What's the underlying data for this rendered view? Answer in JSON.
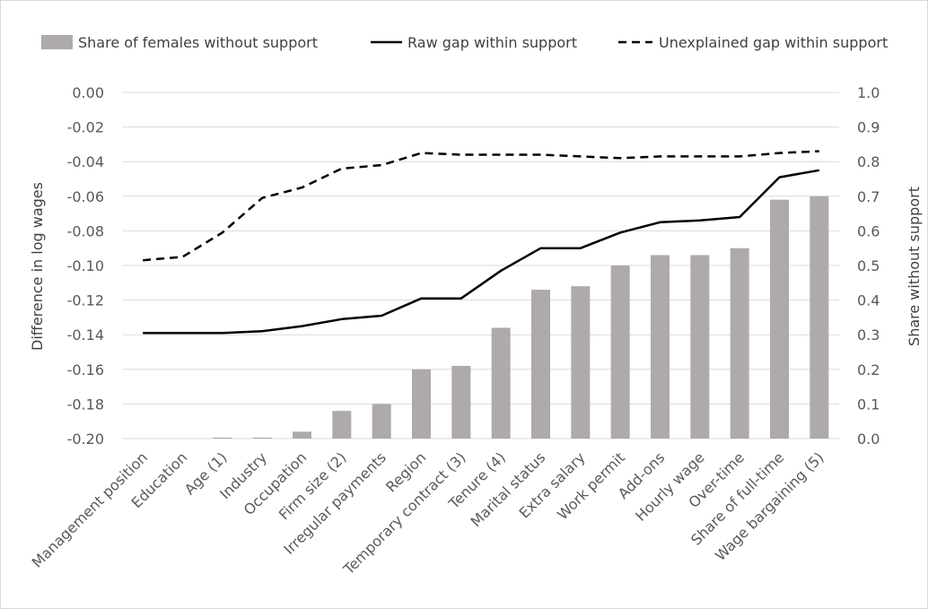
{
  "chart_data": {
    "type": "bar+line",
    "title": "",
    "categories": [
      "Management position",
      "Education",
      "Age (1)",
      "Industry",
      "Occupation",
      "Firm size (2)",
      "Irregular payments",
      "Region",
      "Temporary contract (3)",
      "Tenure (4)",
      "Marital status",
      "Extra salary",
      "Work permit",
      "Add-ons",
      "Hourly wage",
      "Over-time",
      "Share of full-time",
      "Wage bargaining (5)"
    ],
    "series": [
      {
        "name": "Share of females without support",
        "kind": "bar",
        "axis": "right",
        "color": "#aeaaaa",
        "values": [
          0.0,
          0.0,
          0.003,
          0.003,
          0.02,
          0.08,
          0.1,
          0.2,
          0.21,
          0.32,
          0.43,
          0.44,
          0.5,
          0.53,
          0.53,
          0.55,
          0.69,
          0.7
        ]
      },
      {
        "name": "Raw gap within support",
        "kind": "line",
        "style": "solid",
        "axis": "left",
        "color": "#000000",
        "values": [
          -0.139,
          -0.139,
          -0.139,
          -0.138,
          -0.135,
          -0.131,
          -0.129,
          -0.119,
          -0.119,
          -0.103,
          -0.09,
          -0.09,
          -0.081,
          -0.075,
          -0.074,
          -0.072,
          -0.049,
          -0.045
        ]
      },
      {
        "name": "Unexplained gap within support",
        "kind": "line",
        "style": "dashed",
        "axis": "left",
        "color": "#000000",
        "values": [
          -0.097,
          -0.095,
          -0.081,
          -0.061,
          -0.055,
          -0.044,
          -0.042,
          -0.035,
          -0.036,
          -0.036,
          -0.036,
          -0.037,
          -0.038,
          -0.037,
          -0.037,
          -0.037,
          -0.035,
          -0.034
        ]
      }
    ],
    "ylabel": "Difference  in log wages",
    "ylabel_right": "Share without support",
    "ylim": [
      -0.2,
      0.0
    ],
    "ylim_right": [
      0.0,
      1.0
    ],
    "yticks": [
      "0.00",
      "-0.02",
      "-0.04",
      "-0.06",
      "-0.08",
      "-0.10",
      "-0.12",
      "-0.14",
      "-0.16",
      "-0.18",
      "-0.20"
    ],
    "yticks_right": [
      "1.0",
      "0.9",
      "0.8",
      "0.7",
      "0.6",
      "0.5",
      "0.4",
      "0.3",
      "0.2",
      "0.1",
      "0.0"
    ],
    "grid": true,
    "legend_position": "top"
  }
}
